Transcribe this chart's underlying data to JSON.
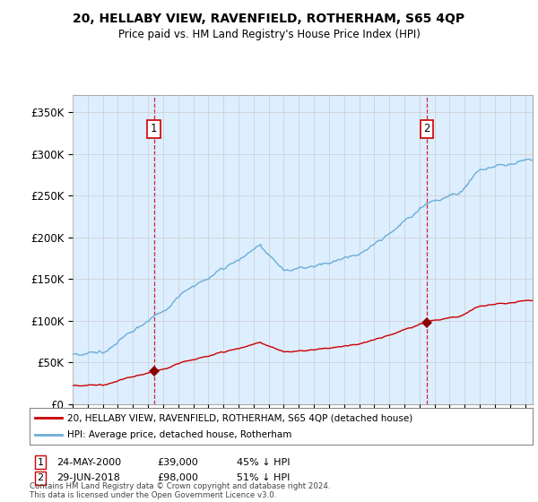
{
  "title_line1": "20, HELLABY VIEW, RAVENFIELD, ROTHERHAM, S65 4QP",
  "title_line2": "Price paid vs. HM Land Registry's House Price Index (HPI)",
  "ylabel_ticks": [
    "£0",
    "£50K",
    "£100K",
    "£150K",
    "£200K",
    "£250K",
    "£300K",
    "£350K"
  ],
  "ytick_values": [
    0,
    50000,
    100000,
    150000,
    200000,
    250000,
    300000,
    350000
  ],
  "ylim": [
    0,
    370000
  ],
  "xlim_start": 1995.0,
  "xlim_end": 2025.5,
  "xtick_years": [
    1995,
    1996,
    1997,
    1998,
    1999,
    2000,
    2001,
    2002,
    2003,
    2004,
    2005,
    2006,
    2007,
    2008,
    2009,
    2010,
    2011,
    2012,
    2013,
    2014,
    2015,
    2016,
    2017,
    2018,
    2019,
    2020,
    2021,
    2022,
    2023,
    2024,
    2025
  ],
  "hpi_color": "#6baed6",
  "price_color": "#cc0000",
  "marker_color": "#8b0000",
  "chart_bg_color": "#ddeeff",
  "sale1_year": 2000.39,
  "sale1_price": 39000,
  "sale1_label": "1",
  "sale2_year": 2018.49,
  "sale2_price": 98000,
  "sale2_label": "2",
  "legend_line1": "20, HELLABY VIEW, RAVENFIELD, ROTHERHAM, S65 4QP (detached house)",
  "legend_line2": "HPI: Average price, detached house, Rotherham",
  "annotation1_date": "24-MAY-2000",
  "annotation1_price": "£39,000",
  "annotation1_hpi": "45% ↓ HPI",
  "annotation2_date": "29-JUN-2018",
  "annotation2_price": "£98,000",
  "annotation2_hpi": "51% ↓ HPI",
  "footer": "Contains HM Land Registry data © Crown copyright and database right 2024.\nThis data is licensed under the Open Government Licence v3.0.",
  "background_color": "#ffffff",
  "grid_color": "#cccccc",
  "label_box_color": "#cc0000"
}
